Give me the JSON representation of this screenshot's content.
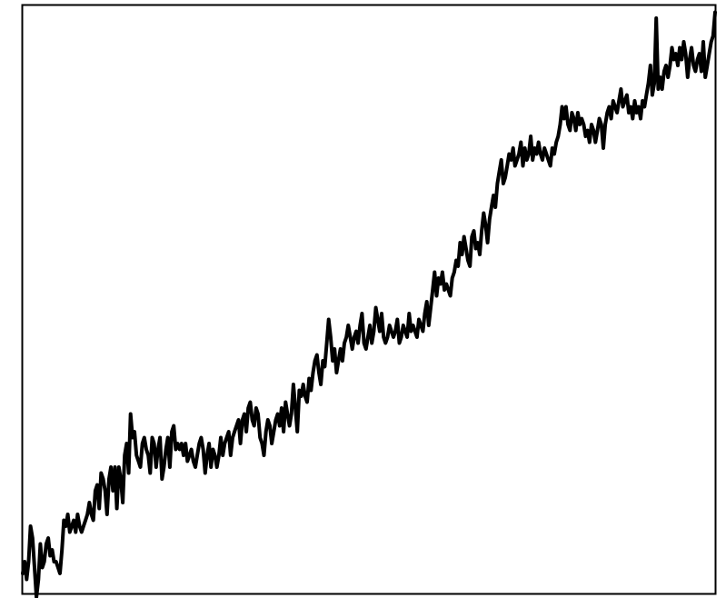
{
  "chart_data": {
    "type": "line",
    "title": "",
    "xlabel": "",
    "ylabel": "",
    "grid": false,
    "legend": "none",
    "xlim": [
      0,
      349
    ],
    "ylim": [
      0,
      1
    ],
    "colors": {
      "line": "#000000",
      "frame": "#000000",
      "background": "#ffffff"
    },
    "series": [
      {
        "values": [
          0.04,
          0.06,
          0.03,
          0.06,
          0.12,
          0.1,
          0.05,
          0.0,
          0.03,
          0.09,
          0.05,
          0.06,
          0.09,
          0.1,
          0.07,
          0.08,
          0.06,
          0.06,
          0.05,
          0.04,
          0.08,
          0.13,
          0.12,
          0.14,
          0.11,
          0.12,
          0.13,
          0.11,
          0.14,
          0.12,
          0.11,
          0.12,
          0.13,
          0.14,
          0.16,
          0.14,
          0.13,
          0.18,
          0.19,
          0.15,
          0.21,
          0.2,
          0.18,
          0.14,
          0.2,
          0.22,
          0.18,
          0.22,
          0.15,
          0.22,
          0.2,
          0.16,
          0.24,
          0.26,
          0.21,
          0.31,
          0.27,
          0.28,
          0.24,
          0.23,
          0.22,
          0.26,
          0.27,
          0.25,
          0.24,
          0.21,
          0.27,
          0.26,
          0.22,
          0.25,
          0.27,
          0.2,
          0.22,
          0.25,
          0.27,
          0.22,
          0.28,
          0.29,
          0.25,
          0.26,
          0.25,
          0.26,
          0.24,
          0.26,
          0.23,
          0.24,
          0.25,
          0.23,
          0.22,
          0.24,
          0.26,
          0.27,
          0.25,
          0.21,
          0.24,
          0.26,
          0.22,
          0.25,
          0.24,
          0.22,
          0.24,
          0.27,
          0.24,
          0.26,
          0.27,
          0.28,
          0.24,
          0.27,
          0.28,
          0.29,
          0.3,
          0.26,
          0.3,
          0.31,
          0.28,
          0.32,
          0.33,
          0.3,
          0.29,
          0.32,
          0.31,
          0.27,
          0.26,
          0.24,
          0.28,
          0.3,
          0.29,
          0.26,
          0.28,
          0.3,
          0.31,
          0.29,
          0.32,
          0.28,
          0.33,
          0.31,
          0.29,
          0.31,
          0.36,
          0.32,
          0.28,
          0.35,
          0.34,
          0.36,
          0.34,
          0.33,
          0.37,
          0.35,
          0.38,
          0.4,
          0.41,
          0.38,
          0.36,
          0.4,
          0.39,
          0.43,
          0.47,
          0.44,
          0.4,
          0.42,
          0.38,
          0.4,
          0.42,
          0.4,
          0.43,
          0.44,
          0.46,
          0.44,
          0.42,
          0.44,
          0.45,
          0.43,
          0.46,
          0.48,
          0.43,
          0.42,
          0.44,
          0.46,
          0.43,
          0.45,
          0.49,
          0.47,
          0.45,
          0.48,
          0.44,
          0.43,
          0.44,
          0.46,
          0.45,
          0.44,
          0.45,
          0.47,
          0.43,
          0.44,
          0.46,
          0.45,
          0.44,
          0.48,
          0.45,
          0.46,
          0.45,
          0.44,
          0.47,
          0.46,
          0.45,
          0.48,
          0.5,
          0.46,
          0.49,
          0.52,
          0.55,
          0.51,
          0.54,
          0.53,
          0.55,
          0.52,
          0.53,
          0.52,
          0.51,
          0.54,
          0.55,
          0.57,
          0.56,
          0.6,
          0.58,
          0.61,
          0.59,
          0.57,
          0.56,
          0.61,
          0.62,
          0.59,
          0.6,
          0.58,
          0.62,
          0.65,
          0.63,
          0.6,
          0.64,
          0.66,
          0.68,
          0.66,
          0.7,
          0.72,
          0.74,
          0.7,
          0.71,
          0.73,
          0.75,
          0.74,
          0.76,
          0.73,
          0.74,
          0.75,
          0.77,
          0.73,
          0.76,
          0.74,
          0.75,
          0.78,
          0.74,
          0.76,
          0.75,
          0.77,
          0.75,
          0.74,
          0.76,
          0.75,
          0.74,
          0.73,
          0.76,
          0.75,
          0.77,
          0.78,
          0.8,
          0.83,
          0.81,
          0.83,
          0.8,
          0.79,
          0.82,
          0.81,
          0.79,
          0.82,
          0.8,
          0.81,
          0.8,
          0.78,
          0.79,
          0.77,
          0.8,
          0.79,
          0.77,
          0.79,
          0.81,
          0.8,
          0.76,
          0.8,
          0.82,
          0.83,
          0.81,
          0.84,
          0.83,
          0.82,
          0.84,
          0.86,
          0.83,
          0.84,
          0.85,
          0.82,
          0.83,
          0.81,
          0.84,
          0.82,
          0.83,
          0.81,
          0.84,
          0.83,
          0.85,
          0.87,
          0.9,
          0.85,
          0.87,
          0.98,
          0.86,
          0.88,
          0.86,
          0.89,
          0.9,
          0.88,
          0.9,
          0.93,
          0.91,
          0.92,
          0.9,
          0.93,
          0.91,
          0.94,
          0.92,
          0.88,
          0.91,
          0.93,
          0.9,
          0.89,
          0.91,
          0.92,
          0.89,
          0.94,
          0.88,
          0.9,
          0.92,
          0.94,
          0.95,
          0.99
        ]
      }
    ]
  }
}
